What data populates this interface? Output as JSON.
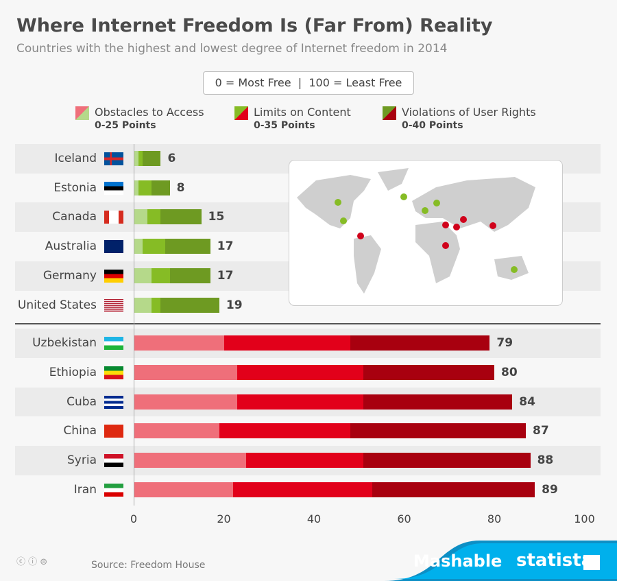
{
  "title": "Where Internet Freedom Is (Far From) Reality",
  "subtitle": "Countries with the highest and lowest degree of Internet freedom in 2014",
  "scale_note": "0 = Most Free  |  100 = Least Free",
  "legend": [
    {
      "label": "Obstacles to Access",
      "range": "0-25 Points"
    },
    {
      "label": "Limits on Content",
      "range": "0-35 Points"
    },
    {
      "label": "Violations of User Rights",
      "range": "0-40 Points"
    }
  ],
  "colors": {
    "free": [
      "#b5d98a",
      "#86bc25",
      "#6e9a22"
    ],
    "notfree": [
      "#ef6f7a",
      "#e2001a",
      "#a8000f"
    ]
  },
  "chart_data": {
    "type": "bar",
    "orientation": "horizontal",
    "stacked": true,
    "xlim": [
      0,
      100
    ],
    "x_ticks": [
      "0",
      "20",
      "40",
      "60",
      "80",
      "100"
    ],
    "categories": [
      "Iceland",
      "Estonia",
      "Canada",
      "Australia",
      "Germany",
      "United States",
      "Uzbekistan",
      "Ethiopia",
      "Cuba",
      "China",
      "Syria",
      "Iran"
    ],
    "series": [
      {
        "name": "Obstacles to Access",
        "values": [
          1,
          1,
          3,
          2,
          4,
          4,
          20,
          23,
          23,
          19,
          25,
          22
        ]
      },
      {
        "name": "Limits on Content",
        "values": [
          1,
          3,
          3,
          5,
          4,
          2,
          28,
          28,
          28,
          29,
          26,
          31
        ]
      },
      {
        "name": "Violations of User Rights",
        "values": [
          4,
          4,
          9,
          10,
          9,
          13,
          31,
          29,
          33,
          39,
          37,
          36
        ]
      }
    ],
    "totals": [
      "6",
      "8",
      "15",
      "17",
      "17",
      "19",
      "79",
      "80",
      "84",
      "87",
      "88",
      "89"
    ]
  },
  "map": {
    "free_color": "#86bc25",
    "notfree_color": "#d0021b"
  },
  "footer": {
    "source": "Source: Freedom House",
    "brand1": "Mashable",
    "brand2": "statista"
  }
}
